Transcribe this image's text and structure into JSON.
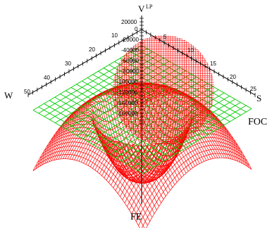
{
  "chart_data": {
    "type": "surface3d",
    "title": "",
    "axes": {
      "s": {
        "label": "S",
        "ticks": [
          "5",
          "10",
          "15",
          "20",
          "25"
        ],
        "range": [
          0,
          25
        ]
      },
      "w": {
        "label": "W",
        "ticks": [
          "10",
          "20",
          "30",
          "40",
          "50"
        ],
        "range": [
          0,
          50
        ]
      },
      "v": {
        "label": "V",
        "label_sup": "LP",
        "ticks": [
          "20000",
          "0",
          "-20000",
          "-40000",
          "-60000",
          "-80000",
          "-100000",
          "-120000",
          "-140000",
          "-160000"
        ],
        "range": [
          -170000,
          20000
        ]
      }
    },
    "surfaces": [
      {
        "name": "FOC",
        "color": "#00cc00",
        "shape": "plane",
        "value": -30000
      },
      {
        "name": "FE",
        "color": "#ff0000",
        "shape": "bowl",
        "min": -160000,
        "rim": -30000
      }
    ],
    "grid": true
  }
}
